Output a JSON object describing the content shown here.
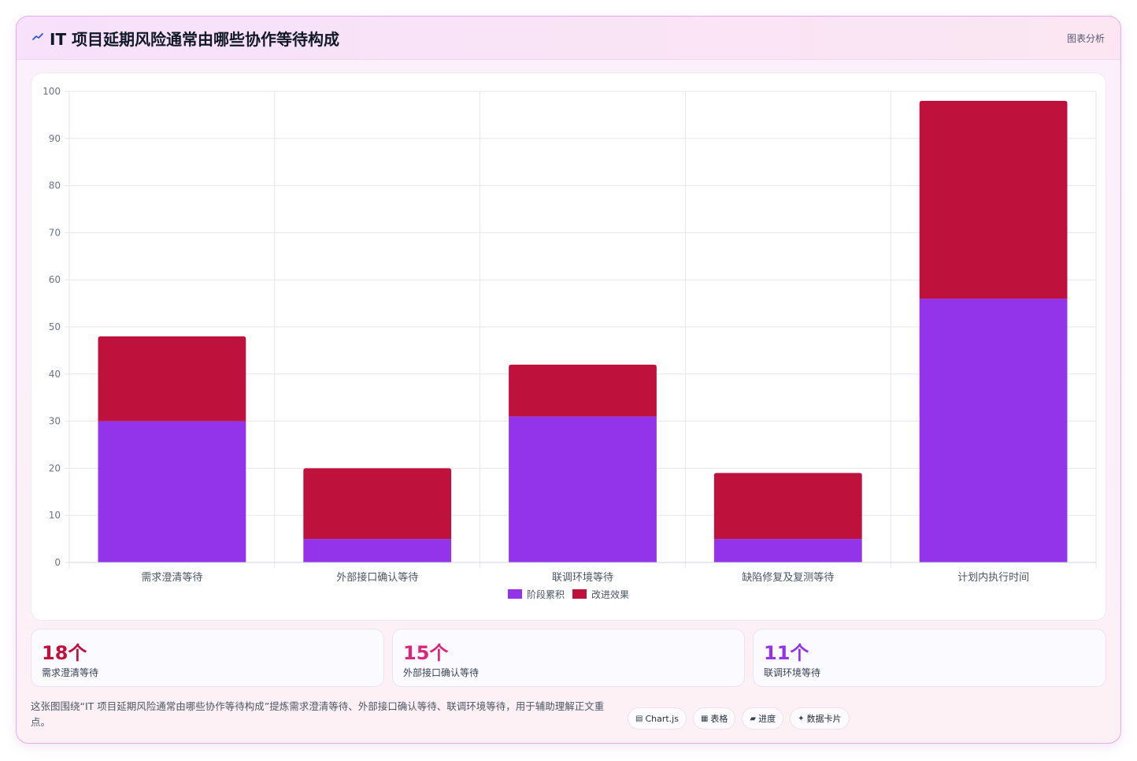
{
  "header": {
    "icon": "trend-line-icon",
    "title": "IT 项目延期风险通常由哪些协作等待构成",
    "tag": "图表分析"
  },
  "chart_data": {
    "type": "bar",
    "stacked": true,
    "categories": [
      "需求澄清等待",
      "外部接口确认等待",
      "联调环境等待",
      "缺陷修复及复测等待",
      "计划内执行时间"
    ],
    "series": [
      {
        "name": "阶段累积",
        "color": "#9333ea",
        "values": [
          30,
          5,
          31,
          5,
          56
        ]
      },
      {
        "name": "改进效果",
        "color": "#be123c",
        "values": [
          18,
          15,
          11,
          14,
          42
        ]
      }
    ],
    "ylim": [
      0,
      100
    ],
    "yticks": [
      "0",
      "10",
      "20",
      "30",
      "40",
      "50",
      "60",
      "70",
      "80",
      "90",
      "100"
    ],
    "grid": true,
    "legend": "bottom"
  },
  "stats": [
    {
      "value": "18个",
      "label": "需求澄清等待",
      "color": "#be123c"
    },
    {
      "value": "15个",
      "label": "外部接口确认等待",
      "color": "#db2777"
    },
    {
      "value": "11个",
      "label": "联调环境等待",
      "color": "#9333ea"
    }
  ],
  "footer": {
    "text": "这张图围绕“IT 项目延期风险通常由哪些协作等待构成”提炼需求澄清等待、外部接口确认等待、联调环境等待，用于辅助理解正文重点。"
  },
  "pills": [
    {
      "icon": "chart-icon",
      "glyph": "▤",
      "label": "Chart.js"
    },
    {
      "icon": "table-icon",
      "glyph": "▦",
      "label": "表格"
    },
    {
      "icon": "progress-icon",
      "glyph": "▰",
      "label": "进度"
    },
    {
      "icon": "sparkle-icon",
      "glyph": "✦",
      "label": "数据卡片"
    }
  ]
}
